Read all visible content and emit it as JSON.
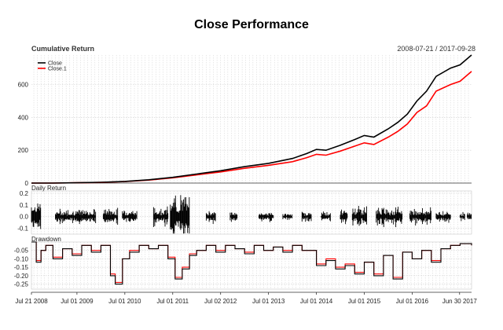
{
  "chart_data": [
    {
      "type": "line",
      "title": "Close Performance",
      "subtitle": "Cumulative Return",
      "date_range": "2008-07-21 / 2017-09-28",
      "ylim": [
        0,
        780
      ],
      "y_ticks": [
        "0",
        "200",
        "400",
        "600"
      ],
      "y_tick_values": [
        0,
        200,
        400,
        600
      ],
      "x_ticks": [
        "Jul 21 2008",
        "Jul 01 2009",
        "Jul 01 2010",
        "Jul 01 2011",
        "Jul 02 2012",
        "Jul 01 2013",
        "Jul 01 2014",
        "Jul 01 2015",
        "Jul 01 2016",
        "Jun 30 2017"
      ],
      "legend": {
        "position": "top-left",
        "entries": [
          "Close",
          "Close.1"
        ]
      },
      "grid": true,
      "x": [
        2008.55,
        2009.0,
        2009.5,
        2010.0,
        2010.5,
        2011.0,
        2011.5,
        2012.0,
        2012.5,
        2013.0,
        2013.5,
        2014.0,
        2014.3,
        2014.5,
        2014.7,
        2015.0,
        2015.3,
        2015.5,
        2015.7,
        2016.0,
        2016.2,
        2016.4,
        2016.6,
        2016.8,
        2017.0,
        2017.3,
        2017.5,
        2017.74
      ],
      "series": [
        {
          "name": "Close",
          "color": "#000000",
          "values": [
            0,
            0,
            2,
            5,
            10,
            20,
            35,
            55,
            75,
            100,
            120,
            150,
            180,
            205,
            200,
            230,
            265,
            290,
            280,
            330,
            370,
            420,
            500,
            560,
            650,
            700,
            720,
            780
          ]
        },
        {
          "name": "Close.1",
          "color": "#ff0000",
          "values": [
            0,
            0,
            2,
            4,
            9,
            18,
            32,
            50,
            68,
            90,
            108,
            130,
            155,
            175,
            170,
            195,
            225,
            245,
            235,
            280,
            315,
            360,
            430,
            470,
            560,
            600,
            620,
            680
          ]
        }
      ]
    },
    {
      "type": "bar",
      "title": "Daily Return",
      "ylim": [
        -0.15,
        0.22
      ],
      "y_ticks": [
        "0.2",
        "0.1",
        "0.0",
        "-0.1"
      ],
      "y_tick_values": [
        0.2,
        0.1,
        0.0,
        -0.1
      ],
      "grid": true,
      "description_of_series": "daily returns, mostly within ±0.05, bursts up to ±0.2",
      "segments": [
        {
          "start": 2008.55,
          "end": 2008.75,
          "amplitude": 0.15
        },
        {
          "start": 2009.05,
          "end": 2009.9,
          "amplitude": 0.06
        },
        {
          "start": 2010.05,
          "end": 2010.35,
          "amplitude": 0.07
        },
        {
          "start": 2010.45,
          "end": 2010.75,
          "amplitude": 0.06
        },
        {
          "start": 2011.1,
          "end": 2011.4,
          "amplitude": 0.08
        },
        {
          "start": 2011.45,
          "end": 2011.85,
          "amplitude": 0.18
        },
        {
          "start": 2012.2,
          "end": 2012.4,
          "amplitude": 0.06
        },
        {
          "start": 2012.7,
          "end": 2012.85,
          "amplitude": 0.04
        },
        {
          "start": 2013.3,
          "end": 2013.6,
          "amplitude": 0.04
        },
        {
          "start": 2013.8,
          "end": 2014.0,
          "amplitude": 0.03
        },
        {
          "start": 2014.2,
          "end": 2014.4,
          "amplitude": 0.04
        },
        {
          "start": 2014.6,
          "end": 2014.8,
          "amplitude": 0.04
        },
        {
          "start": 2015.0,
          "end": 2015.15,
          "amplitude": 0.06
        },
        {
          "start": 2015.25,
          "end": 2015.55,
          "amplitude": 0.09
        },
        {
          "start": 2015.75,
          "end": 2016.3,
          "amplitude": 0.08
        },
        {
          "start": 2016.45,
          "end": 2016.9,
          "amplitude": 0.07
        },
        {
          "start": 2017.0,
          "end": 2017.3,
          "amplitude": 0.05
        },
        {
          "start": 2017.5,
          "end": 2017.6,
          "amplitude": 0.04
        },
        {
          "start": 2017.65,
          "end": 2017.74,
          "amplitude": 0.03
        }
      ]
    },
    {
      "type": "line",
      "title": "Drawdown",
      "ylim": [
        -0.28,
        0.0
      ],
      "y_ticks": [
        "-0.05",
        "-0.10",
        "-0.15",
        "-0.20",
        "-0.25"
      ],
      "y_tick_values": [
        -0.05,
        -0.1,
        -0.15,
        -0.2,
        -0.25
      ],
      "grid": true,
      "x": [
        2008.55,
        2008.65,
        2008.75,
        2008.85,
        2009.0,
        2009.2,
        2009.4,
        2009.6,
        2009.8,
        2010.0,
        2010.2,
        2010.3,
        2010.45,
        2010.6,
        2010.8,
        2011.0,
        2011.2,
        2011.4,
        2011.55,
        2011.7,
        2011.85,
        2012.0,
        2012.2,
        2012.4,
        2012.6,
        2012.8,
        2013.0,
        2013.2,
        2013.4,
        2013.6,
        2013.8,
        2014.0,
        2014.2,
        2014.5,
        2014.7,
        2014.9,
        2015.1,
        2015.3,
        2015.5,
        2015.7,
        2015.9,
        2016.1,
        2016.3,
        2016.5,
        2016.7,
        2016.9,
        2017.1,
        2017.3,
        2017.5,
        2017.74
      ],
      "series": [
        {
          "name": "Close",
          "color": "#000000",
          "values": [
            0,
            -0.12,
            -0.05,
            -0.02,
            -0.1,
            -0.04,
            -0.08,
            -0.02,
            -0.06,
            -0.02,
            -0.2,
            -0.25,
            -0.1,
            -0.06,
            -0.02,
            -0.04,
            -0.02,
            -0.1,
            -0.22,
            -0.16,
            -0.08,
            -0.05,
            -0.02,
            -0.06,
            -0.02,
            -0.04,
            -0.07,
            -0.02,
            -0.05,
            -0.03,
            -0.06,
            -0.02,
            -0.05,
            -0.14,
            -0.11,
            -0.16,
            -0.14,
            -0.19,
            -0.12,
            -0.2,
            -0.08,
            -0.22,
            -0.06,
            -0.1,
            -0.05,
            -0.12,
            -0.04,
            -0.02,
            -0.01,
            -0.02
          ]
        },
        {
          "name": "Close.1",
          "color": "#ff0000",
          "values": [
            0,
            -0.11,
            -0.05,
            -0.02,
            -0.09,
            -0.04,
            -0.07,
            -0.02,
            -0.05,
            -0.02,
            -0.19,
            -0.24,
            -0.1,
            -0.05,
            -0.02,
            -0.04,
            -0.02,
            -0.09,
            -0.21,
            -0.15,
            -0.07,
            -0.05,
            -0.02,
            -0.05,
            -0.02,
            -0.04,
            -0.06,
            -0.02,
            -0.05,
            -0.03,
            -0.05,
            -0.02,
            -0.05,
            -0.13,
            -0.1,
            -0.15,
            -0.13,
            -0.18,
            -0.12,
            -0.19,
            -0.08,
            -0.21,
            -0.06,
            -0.1,
            -0.05,
            -0.11,
            -0.04,
            -0.02,
            -0.01,
            -0.02
          ]
        }
      ]
    }
  ]
}
